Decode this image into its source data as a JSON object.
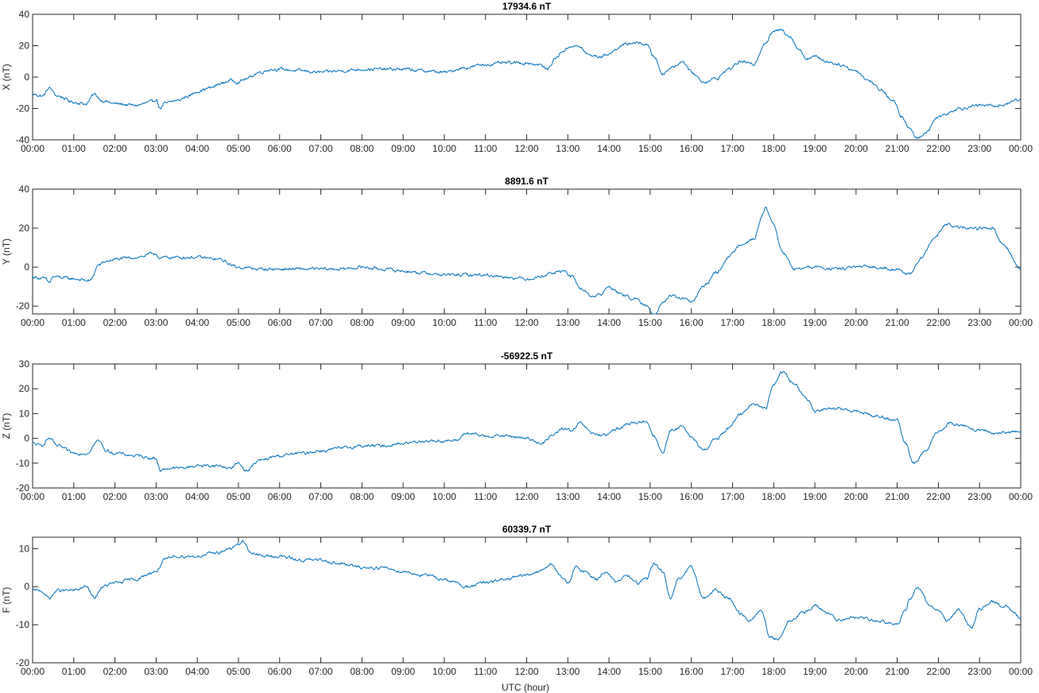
{
  "colors": {
    "line": "#0072bd",
    "axis": "#262626",
    "background": "#ffffff"
  },
  "xlabel": "UTC (hour)",
  "x_ticks": [
    "00:00",
    "01:00",
    "02:00",
    "03:00",
    "04:00",
    "05:00",
    "06:00",
    "07:00",
    "08:00",
    "09:00",
    "10:00",
    "11:00",
    "12:00",
    "13:00",
    "14:00",
    "15:00",
    "16:00",
    "17:00",
    "18:00",
    "19:00",
    "20:00",
    "21:00",
    "22:00",
    "23:00",
    "00:00"
  ],
  "chart_data": [
    {
      "type": "line",
      "title": "17934.6 nT",
      "ylabel": "X (nT)",
      "xlim": [
        0,
        24
      ],
      "ylim": [
        -40,
        40
      ],
      "yticks": [
        -40,
        -20,
        0,
        20,
        40
      ],
      "x": [
        0,
        0.25,
        0.4,
        0.6,
        1.0,
        1.3,
        1.5,
        1.7,
        2.0,
        2.5,
        2.9,
        3.0,
        3.1,
        3.2,
        3.5,
        3.8,
        4.0,
        4.3,
        4.6,
        4.8,
        5.0,
        5.2,
        5.5,
        5.8,
        6.0,
        6.5,
        7.0,
        7.5,
        8.0,
        8.5,
        9.0,
        9.5,
        10.0,
        10.5,
        11.0,
        11.5,
        12.0,
        12.3,
        12.5,
        12.7,
        12.9,
        13.1,
        13.3,
        13.5,
        13.8,
        14.0,
        14.3,
        14.6,
        14.9,
        15.1,
        15.3,
        15.5,
        15.8,
        16.0,
        16.3,
        16.6,
        16.9,
        17.2,
        17.5,
        17.8,
        18.0,
        18.2,
        18.4,
        18.6,
        18.8,
        19.0,
        19.3,
        19.6,
        20.0,
        20.3,
        20.6,
        20.9,
        21.1,
        21.3,
        21.5,
        21.7,
        22.0,
        22.5,
        23.0,
        23.5,
        24.0
      ],
      "y": [
        -11,
        -12,
        -7,
        -12,
        -16,
        -17,
        -11,
        -15,
        -17,
        -18,
        -16,
        -14,
        -20,
        -17,
        -15,
        -12,
        -9,
        -7,
        -4,
        -2,
        -3,
        -1,
        3,
        5,
        5,
        4,
        3,
        4,
        5,
        5,
        5,
        4,
        3,
        6,
        8,
        9,
        9,
        8,
        5,
        12,
        17,
        20,
        19,
        14,
        13,
        15,
        20,
        22,
        21,
        13,
        2,
        6,
        10,
        3,
        -3,
        -1,
        5,
        10,
        8,
        22,
        29,
        30,
        26,
        18,
        12,
        13,
        10,
        8,
        4,
        -2,
        -8,
        -15,
        -25,
        -33,
        -39,
        -35,
        -25,
        -20,
        -18,
        -18,
        -14
      ]
    },
    {
      "type": "line",
      "title": "8891.6 nT",
      "ylabel": "Y (nT)",
      "xlim": [
        0,
        24
      ],
      "ylim": [
        -24,
        40
      ],
      "yticks": [
        -20,
        0,
        20,
        40
      ],
      "x": [
        0,
        0.3,
        0.4,
        0.5,
        1.0,
        1.4,
        1.6,
        1.8,
        2.0,
        2.5,
        3.0,
        3.1,
        3.2,
        3.5,
        4.0,
        4.5,
        5.0,
        5.5,
        6.0,
        6.5,
        7.0,
        7.5,
        8.0,
        8.5,
        9.0,
        9.5,
        10.0,
        10.5,
        11.0,
        11.5,
        12.0,
        12.3,
        12.6,
        12.9,
        13.1,
        13.3,
        13.6,
        13.8,
        14.0,
        14.3,
        14.6,
        14.9,
        15.1,
        15.3,
        15.5,
        15.8,
        16.0,
        16.3,
        16.6,
        16.9,
        17.2,
        17.5,
        17.8,
        18.0,
        18.2,
        18.5,
        19.0,
        19.5,
        20.0,
        20.5,
        21.0,
        21.3,
        21.6,
        21.9,
        22.2,
        22.5,
        23.0,
        23.3,
        23.6,
        24.0
      ],
      "y": [
        -5,
        -6,
        -8,
        -5,
        -6,
        -7,
        1,
        3,
        4,
        5,
        7,
        4,
        5,
        5,
        5,
        4,
        0,
        -1,
        -1,
        -1,
        -1,
        -1,
        0,
        -1,
        -2,
        -3,
        -4,
        -4,
        -4,
        -5,
        -6,
        -5,
        -3,
        -2,
        -5,
        -11,
        -15,
        -14,
        -10,
        -14,
        -16,
        -20,
        -24,
        -18,
        -15,
        -16,
        -18,
        -10,
        -3,
        5,
        12,
        14,
        30,
        22,
        8,
        -1,
        0,
        -1,
        0,
        0,
        -1,
        -4,
        5,
        15,
        22,
        20,
        20,
        20,
        11,
        -1
      ]
    },
    {
      "type": "line",
      "title": "-56922.5 nT",
      "ylabel": "Z (nT)",
      "xlim": [
        0,
        24
      ],
      "ylim": [
        -20,
        30
      ],
      "yticks": [
        -20,
        -10,
        0,
        10,
        20,
        30
      ],
      "x": [
        0,
        0.2,
        0.4,
        0.6,
        1.0,
        1.3,
        1.6,
        1.8,
        2.0,
        2.5,
        3.0,
        3.1,
        3.3,
        3.6,
        4.0,
        4.5,
        4.8,
        5.0,
        5.2,
        5.5,
        6.0,
        6.5,
        7.0,
        7.5,
        8.0,
        8.5,
        9.0,
        9.5,
        10.0,
        10.3,
        10.5,
        11.0,
        11.5,
        12.0,
        12.4,
        12.6,
        12.9,
        13.1,
        13.3,
        13.6,
        13.9,
        14.2,
        14.5,
        14.9,
        15.1,
        15.3,
        15.5,
        15.8,
        16.0,
        16.3,
        16.6,
        16.9,
        17.2,
        17.5,
        17.8,
        18.0,
        18.2,
        18.5,
        18.8,
        19.0,
        19.5,
        20.0,
        20.5,
        21.0,
        21.2,
        21.4,
        21.7,
        22.0,
        22.3,
        22.6,
        23.0,
        23.5,
        24.0
      ],
      "y": [
        -2,
        -3,
        0,
        -3,
        -6,
        -6,
        -1,
        -5,
        -6,
        -7,
        -8,
        -13,
        -12,
        -12,
        -11,
        -11,
        -12,
        -10,
        -13,
        -9,
        -7,
        -6,
        -5,
        -4,
        -3,
        -3,
        -2,
        -1,
        -1,
        -1,
        2,
        1,
        1,
        0,
        -2,
        1,
        4,
        3,
        6,
        2,
        1,
        4,
        6,
        7,
        1,
        -6,
        3,
        5,
        0,
        -5,
        0,
        4,
        10,
        14,
        12,
        22,
        27,
        22,
        16,
        11,
        12,
        11,
        9,
        7,
        -2,
        -10,
        -5,
        3,
        6,
        5,
        3,
        2,
        3
      ]
    },
    {
      "type": "line",
      "title": "60339.7 nT",
      "ylabel": "F (nT)",
      "xlim": [
        0,
        24
      ],
      "ylim": [
        -20,
        13
      ],
      "yticks": [
        -20,
        -10,
        0,
        10
      ],
      "x": [
        0,
        0.2,
        0.4,
        0.6,
        1.0,
        1.3,
        1.5,
        1.7,
        2.0,
        2.5,
        3.0,
        3.2,
        3.5,
        4.0,
        4.5,
        4.8,
        5.0,
        5.1,
        5.3,
        5.6,
        6.0,
        6.5,
        7.0,
        7.5,
        8.0,
        8.5,
        9.0,
        9.5,
        10.0,
        10.3,
        10.5,
        11.0,
        11.5,
        12.0,
        12.3,
        12.6,
        12.8,
        13.0,
        13.2,
        13.4,
        13.7,
        13.9,
        14.2,
        14.4,
        14.7,
        14.9,
        15.1,
        15.3,
        15.5,
        15.7,
        16.0,
        16.3,
        16.6,
        16.9,
        17.2,
        17.4,
        17.7,
        17.9,
        18.1,
        18.4,
        18.7,
        19.0,
        19.3,
        19.6,
        20.0,
        20.5,
        21.0,
        21.2,
        21.3,
        21.5,
        21.8,
        22.0,
        22.2,
        22.5,
        22.8,
        23.0,
        23.3,
        23.6,
        24.0
      ],
      "y": [
        -1,
        -1,
        -3,
        -1,
        -1,
        0,
        -3,
        0,
        1,
        2,
        4,
        7,
        8,
        8,
        9,
        10,
        11,
        12,
        9,
        8,
        8,
        7,
        7,
        6,
        5,
        5,
        4,
        3,
        2,
        1,
        0,
        1,
        2,
        3,
        4,
        6,
        3,
        1,
        5,
        4,
        2,
        4,
        1,
        3,
        1,
        2,
        6,
        4,
        -3,
        2,
        5,
        -3,
        -1,
        -3,
        -7,
        -9,
        -6,
        -13,
        -14,
        -9,
        -7,
        -5,
        -7,
        -9,
        -8,
        -9,
        -10,
        -6,
        -3,
        0,
        -5,
        -6,
        -9,
        -6,
        -11,
        -6,
        -4,
        -5,
        -8
      ]
    }
  ]
}
